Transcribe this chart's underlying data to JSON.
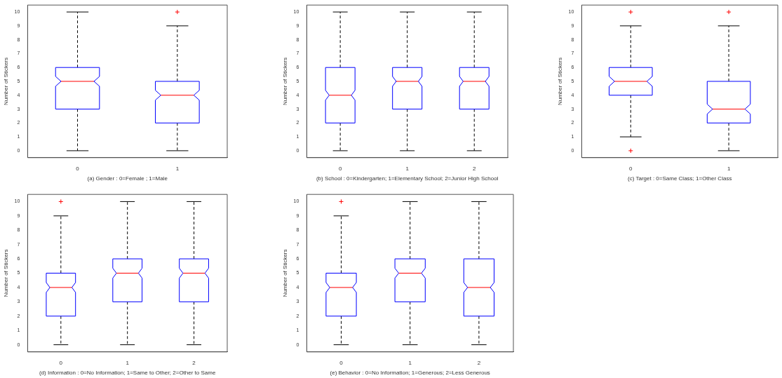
{
  "chart_data": [
    {
      "type": "box",
      "xlabel": "(a) Gender : 0=Female ; 1=Male",
      "ylabel": "Number of Stickers",
      "categories": [
        "0",
        "1"
      ],
      "color": "#0000ff",
      "ylim": [
        -0.5,
        10.5
      ],
      "yticks": [
        0,
        1,
        2,
        3,
        4,
        5,
        6,
        7,
        8,
        9,
        10
      ],
      "boxes": [
        {
          "low": 0,
          "q1": 3,
          "median": 5,
          "q3": 6,
          "high": 10
        },
        {
          "low": 0,
          "q1": 2,
          "median": 4,
          "q3": 5,
          "high": 9,
          "outliers": [
            10
          ]
        }
      ]
    },
    {
      "type": "box",
      "xlabel": "(b) School : 0=Kindergarten; 1=Elementary School; 2=Junior High School",
      "ylabel": "Number of Stickers",
      "categories": [
        "0",
        "1",
        "2"
      ],
      "color": "#0000ff",
      "ylim": [
        -0.5,
        10.5
      ],
      "yticks": [
        0,
        1,
        2,
        3,
        4,
        5,
        6,
        7,
        8,
        9,
        10
      ],
      "boxes": [
        {
          "low": 0,
          "q1": 2,
          "median": 4,
          "q3": 6,
          "high": 10
        },
        {
          "low": 0,
          "q1": 3,
          "median": 5,
          "q3": 6,
          "high": 10
        },
        {
          "low": 0,
          "q1": 3,
          "median": 5,
          "q3": 6,
          "high": 10
        }
      ]
    },
    {
      "type": "box",
      "xlabel": "(c) Target : 0=Same Class; 1=Other Class",
      "ylabel": "Number of Stickers",
      "categories": [
        "0",
        "1"
      ],
      "color": "#0000ff",
      "ylim": [
        -0.5,
        10.5
      ],
      "yticks": [
        0,
        1,
        2,
        3,
        4,
        5,
        6,
        7,
        8,
        9,
        10
      ],
      "boxes": [
        {
          "low": 1,
          "q1": 4,
          "median": 5,
          "q3": 6,
          "high": 9,
          "outliers": [
            0,
            10
          ]
        },
        {
          "low": 0,
          "q1": 2,
          "median": 3,
          "q3": 5,
          "high": 9,
          "outliers": [
            10
          ]
        }
      ]
    },
    {
      "type": "box",
      "xlabel": "(d) Information : 0=No Information; 1=Same to Other; 2=Other to Same",
      "ylabel": "Number of Stickers",
      "categories": [
        "0",
        "1",
        "2"
      ],
      "color": "#0000ff",
      "ylim": [
        -0.5,
        10.5
      ],
      "yticks": [
        0,
        1,
        2,
        3,
        4,
        5,
        6,
        7,
        8,
        9,
        10
      ],
      "boxes": [
        {
          "low": 0,
          "q1": 2,
          "median": 4,
          "q3": 5,
          "high": 9,
          "outliers": [
            10
          ]
        },
        {
          "low": 0,
          "q1": 3,
          "median": 5,
          "q3": 6,
          "high": 10
        },
        {
          "low": 0,
          "q1": 3,
          "median": 5,
          "q3": 6,
          "high": 10
        }
      ]
    },
    {
      "type": "box",
      "xlabel": "(e) Behavior : 0=No Information; 1=Generous; 2=Less Generous",
      "ylabel": "Number of Stickers",
      "categories": [
        "0",
        "1",
        "2"
      ],
      "color": "#0000ff",
      "ylim": [
        -0.5,
        10.5
      ],
      "yticks": [
        0,
        1,
        2,
        3,
        4,
        5,
        6,
        7,
        8,
        9,
        10
      ],
      "boxes": [
        {
          "low": 0,
          "q1": 2,
          "median": 4,
          "q3": 5,
          "high": 9,
          "outliers": [
            10
          ]
        },
        {
          "low": 0,
          "q1": 3,
          "median": 5,
          "q3": 6,
          "high": 10
        },
        {
          "low": 0,
          "q1": 2,
          "median": 4,
          "q3": 6,
          "high": 10
        }
      ]
    }
  ]
}
